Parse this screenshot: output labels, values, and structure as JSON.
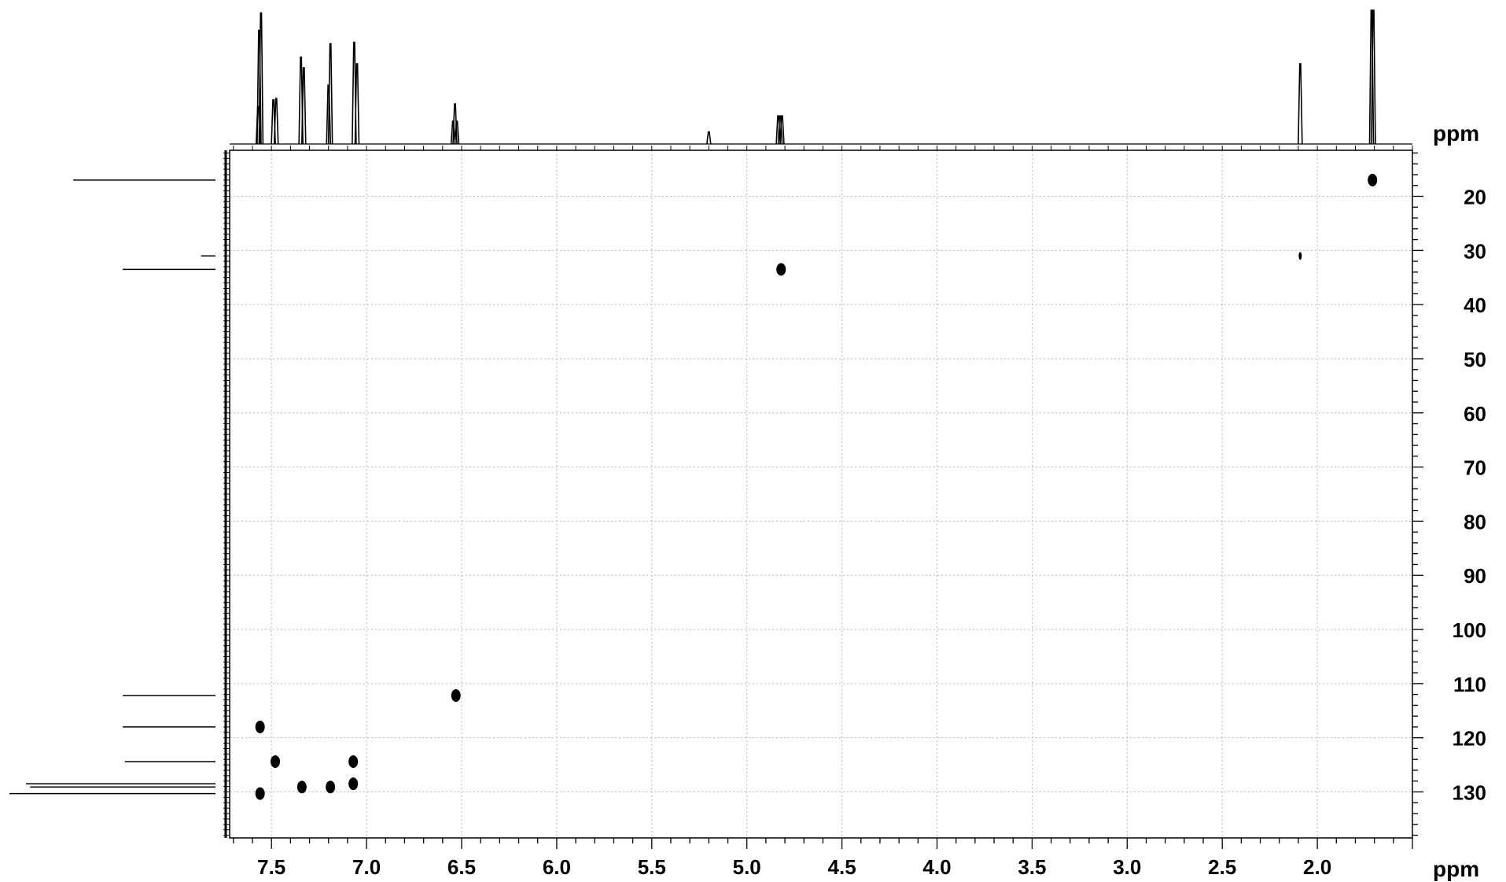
{
  "chart_data": {
    "type": "scatter",
    "title": "",
    "xlabel": "ppm",
    "ylabel": "ppm",
    "x_axis": {
      "label": "ppm",
      "range": [
        7.72,
        1.5
      ],
      "reversed": true,
      "major_ticks": [
        7.5,
        7.0,
        6.5,
        6.0,
        5.5,
        5.0,
        4.5,
        4.0,
        3.5,
        3.0,
        2.5,
        2.0
      ],
      "tick_labels": [
        "7.5",
        "7.0",
        "6.5",
        "6.0",
        "5.5",
        "5.0",
        "4.5",
        "4.0",
        "3.5",
        "3.0",
        "2.5",
        "2.0"
      ]
    },
    "y_axis": {
      "label": "ppm",
      "range": [
        11.5,
        138.5
      ],
      "reversed": true,
      "side": "right",
      "major_ticks": [
        20,
        30,
        40,
        50,
        60,
        70,
        80,
        90,
        100,
        110,
        120,
        130
      ],
      "tick_labels": [
        "20",
        "30",
        "40",
        "50",
        "60",
        "70",
        "80",
        "90",
        "100",
        "110",
        "120",
        "130"
      ]
    },
    "grid": true,
    "grid_style": "dotted",
    "cross_peaks": [
      {
        "x": 1.71,
        "y": 17.0
      },
      {
        "x": 2.09,
        "y": 31.0
      },
      {
        "x": 4.82,
        "y": 33.5
      },
      {
        "x": 6.53,
        "y": 112.2
      },
      {
        "x": 7.56,
        "y": 118.0
      },
      {
        "x": 7.56,
        "y": 130.3
      },
      {
        "x": 7.48,
        "y": 124.4
      },
      {
        "x": 7.34,
        "y": 129.1
      },
      {
        "x": 7.19,
        "y": 129.1
      },
      {
        "x": 7.07,
        "y": 124.4
      },
      {
        "x": 7.07,
        "y": 128.5
      }
    ],
    "top_projection_peaks": [
      {
        "x": 7.57,
        "intensity": 0.28
      },
      {
        "x": 7.565,
        "intensity": 0.85
      },
      {
        "x": 7.555,
        "intensity": 0.98
      },
      {
        "x": 7.49,
        "intensity": 0.33
      },
      {
        "x": 7.475,
        "intensity": 0.34
      },
      {
        "x": 7.345,
        "intensity": 0.65
      },
      {
        "x": 7.33,
        "intensity": 0.57
      },
      {
        "x": 7.2,
        "intensity": 0.44
      },
      {
        "x": 7.19,
        "intensity": 0.75
      },
      {
        "x": 7.065,
        "intensity": 0.76
      },
      {
        "x": 7.05,
        "intensity": 0.6
      },
      {
        "x": 6.545,
        "intensity": 0.17
      },
      {
        "x": 6.535,
        "intensity": 0.3
      },
      {
        "x": 6.525,
        "intensity": 0.17
      },
      {
        "x": 5.2,
        "intensity": 0.09
      },
      {
        "x": 4.835,
        "intensity": 0.21
      },
      {
        "x": 4.825,
        "intensity": 0.21
      },
      {
        "x": 4.815,
        "intensity": 0.21
      },
      {
        "x": 2.09,
        "intensity": 0.6
      },
      {
        "x": 1.715,
        "intensity": 1.0
      },
      {
        "x": 1.705,
        "intensity": 1.0
      }
    ],
    "left_projection_peaks": [
      {
        "y": 17.0,
        "intensity": 0.69
      },
      {
        "y": 31.0,
        "intensity": 0.07
      },
      {
        "y": 33.5,
        "intensity": 0.45
      },
      {
        "y": 112.2,
        "intensity": 0.45
      },
      {
        "y": 118.0,
        "intensity": 0.45
      },
      {
        "y": 124.4,
        "intensity": 0.44
      },
      {
        "y": 128.5,
        "intensity": 0.92
      },
      {
        "y": 129.1,
        "intensity": 0.9
      },
      {
        "y": 130.3,
        "intensity": 1.0
      }
    ]
  }
}
